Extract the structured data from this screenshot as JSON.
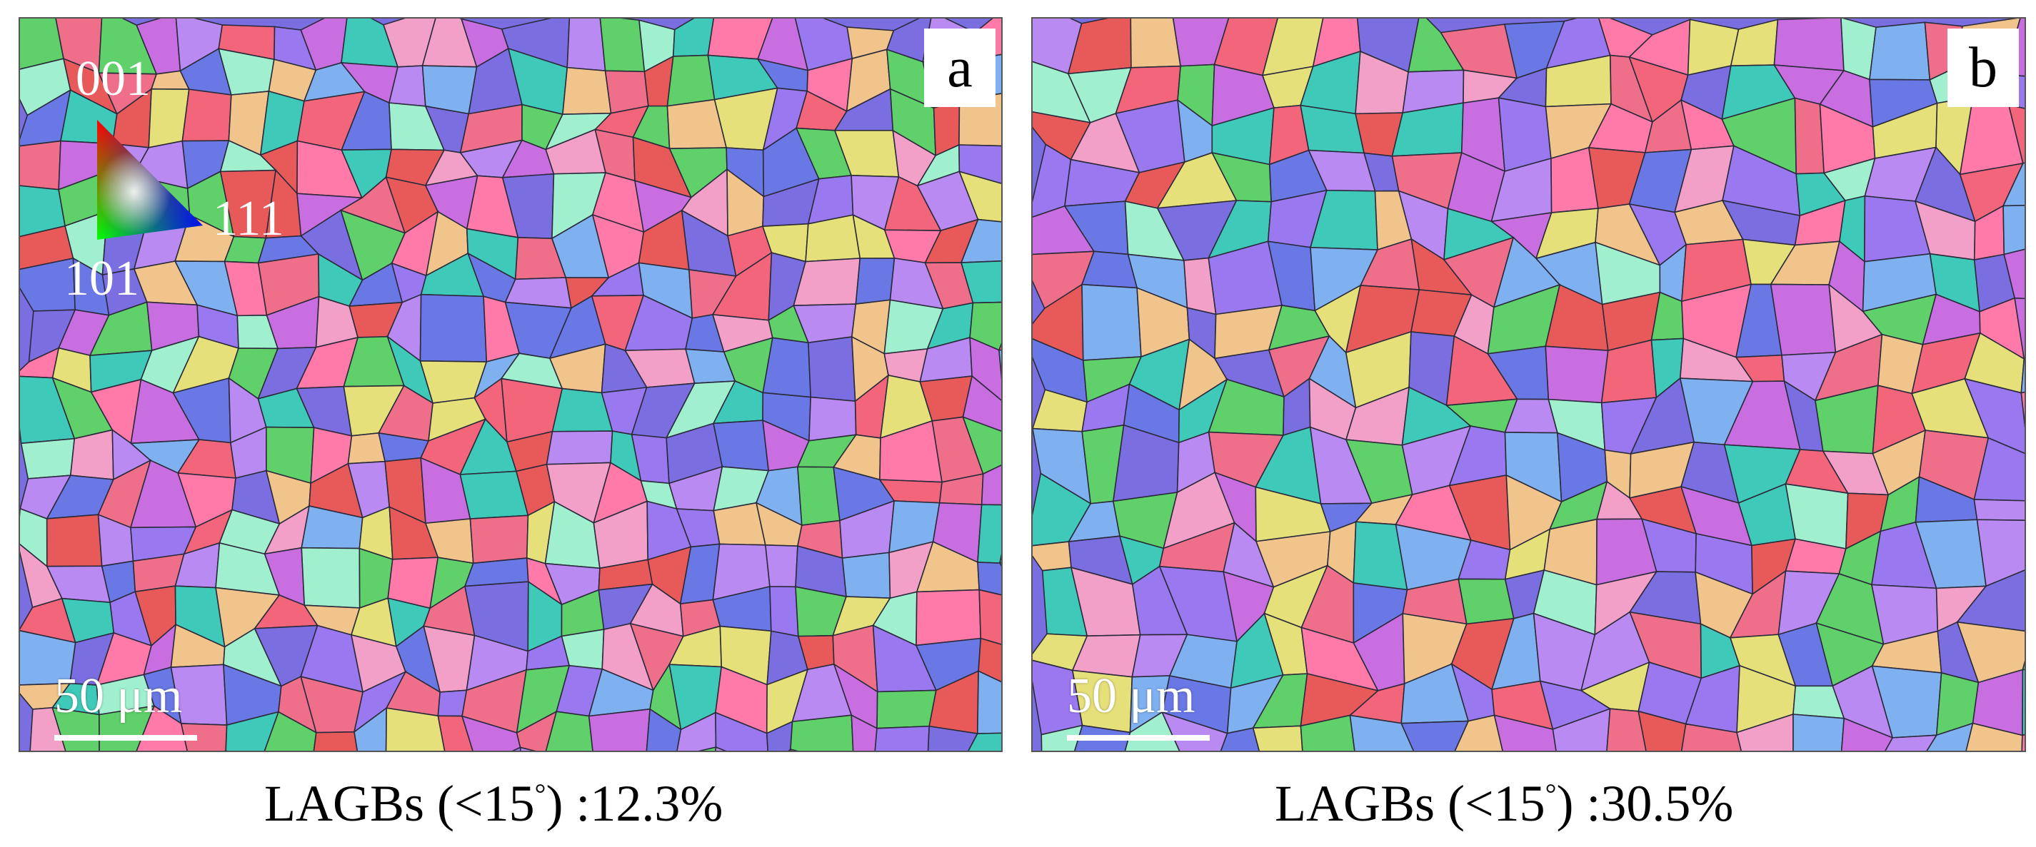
{
  "panels": [
    {
      "label": "a",
      "scale_bar": "50 μm",
      "caption": {
        "prefix": "LAGBs (<15",
        "degree": "°",
        "suffix": ") :12.3%"
      },
      "ipf_key": {
        "top": "001",
        "left": "101",
        "right": "111"
      }
    },
    {
      "label": "b",
      "scale_bar": "50 μm",
      "caption": {
        "prefix": "LAGBs (<15",
        "degree": "°",
        "suffix": ") :30.5%"
      }
    }
  ],
  "grain_palette": [
    "#7a6ee0",
    "#6a78e6",
    "#ef6f8a",
    "#f2657a",
    "#e85a5a",
    "#9a78f0",
    "#b98af2",
    "#5fd06a",
    "#3fc9b8",
    "#f0c48a",
    "#f2a0c8",
    "#e6e07a",
    "#c86ee0",
    "#7fb0f0",
    "#ff7aa8",
    "#a0f0d0"
  ]
}
